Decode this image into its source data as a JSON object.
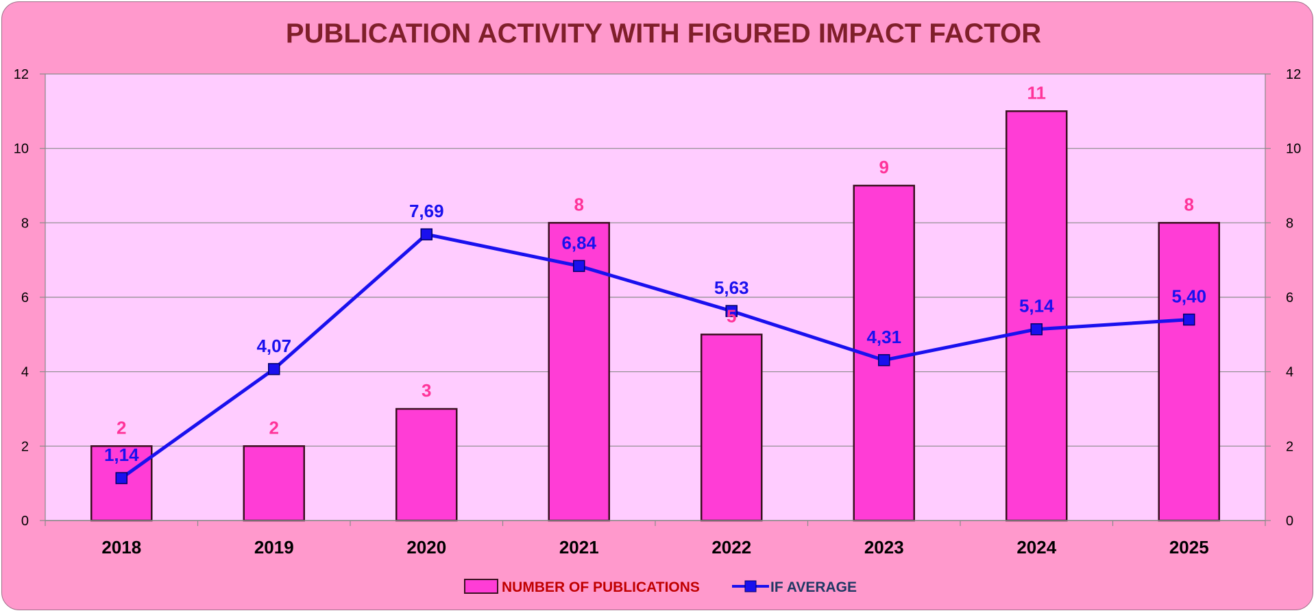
{
  "chart_data": {
    "type": "bar",
    "title": "PUBLICATION ACTIVITY WITH FIGURED IMPACT FACTOR",
    "categories": [
      "2018",
      "2019",
      "2020",
      "2021",
      "2022",
      "2023",
      "2024",
      "2025"
    ],
    "series": [
      {
        "name": "NUMBER OF PUBLICATIONS",
        "type": "bar",
        "axis": "left",
        "values": [
          2,
          2,
          3,
          8,
          5,
          9,
          11,
          8
        ],
        "labels": [
          "2",
          "2",
          "3",
          "8",
          "5",
          "9",
          "11",
          "8"
        ],
        "color": "#ff3dd6"
      },
      {
        "name": "IF AVERAGE",
        "type": "line",
        "axis": "right",
        "values": [
          1.14,
          4.07,
          7.69,
          6.84,
          5.63,
          4.31,
          5.14,
          5.4
        ],
        "labels": [
          "1,14",
          "4,07",
          "7,69",
          "6,84",
          "5,63",
          "4,31",
          "5,14",
          "5,40"
        ],
        "color": "#1a10ee"
      }
    ],
    "ylim": [
      0,
      12
    ],
    "y2lim": [
      0,
      12
    ],
    "yticks": [
      "0",
      "2",
      "4",
      "6",
      "8",
      "10",
      "12"
    ],
    "y2ticks": [
      "0",
      "2",
      "4",
      "6",
      "8",
      "10",
      "12"
    ],
    "grid": true,
    "legend_position": "bottom",
    "colors": {
      "frame_background": "#ff99cc",
      "plot_background": "#ffccff",
      "bar_fill": "#ff3dd6",
      "bar_label": "#ff3399",
      "line": "#1a10ee",
      "title": "#7f1f2a"
    }
  }
}
